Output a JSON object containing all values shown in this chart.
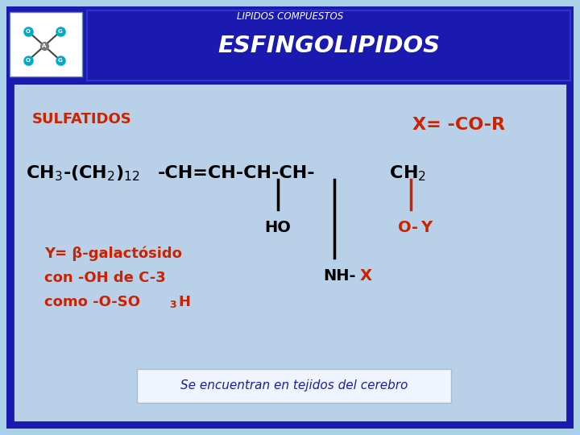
{
  "bg_outer": "#a8d0e6",
  "bg_blue_dark": "#1a1ab0",
  "bg_inner": "#b8d0e8",
  "color_orange": "#cc2200",
  "color_black": "#000000",
  "color_blue_title": "#1a2299",
  "color_white": "#ffffff",
  "title_top": "LIPIDOS COMPUESTOS",
  "title_main": "ESFINGOLIPIDOS",
  "sulfatidos_label": "SULFATIDOS",
  "x_label": "X= -CO-R",
  "bottom_note": "Se encuentran en tejidos del cerebro"
}
